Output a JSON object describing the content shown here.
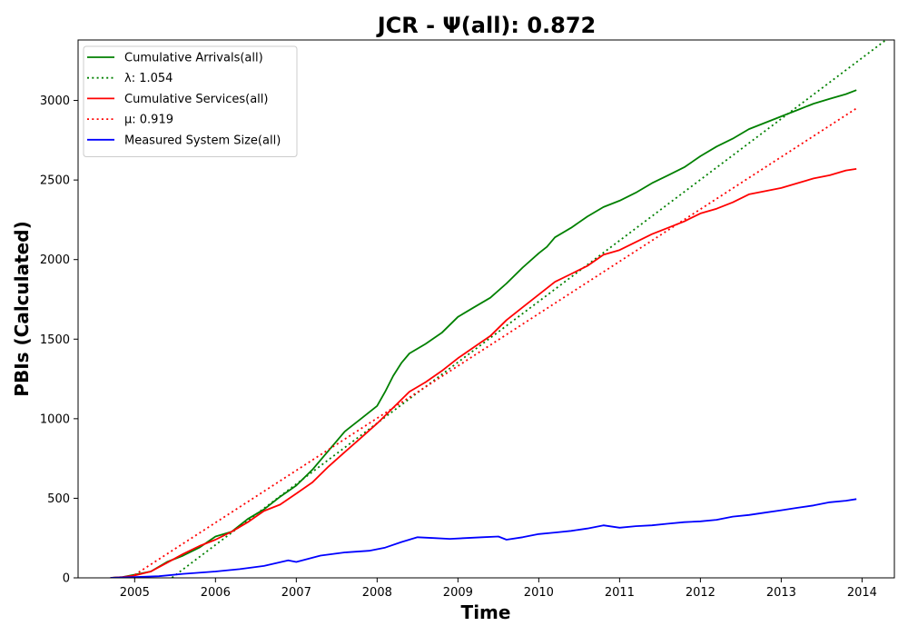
{
  "chart_data": {
    "type": "line",
    "title": "JCR -  Ψ(all): 0.872",
    "xlabel": "Time",
    "ylabel": "PBIs (Calculated)",
    "xlim": [
      2004.3,
      2014.4
    ],
    "ylim": [
      0,
      3380
    ],
    "x_ticks": [
      2005,
      2006,
      2007,
      2008,
      2009,
      2010,
      2011,
      2012,
      2013,
      2014
    ],
    "x_tick_labels": [
      "2005",
      "2006",
      "2007",
      "2008",
      "2009",
      "2010",
      "2011",
      "2012",
      "2013",
      "2014"
    ],
    "y_ticks": [
      0,
      500,
      1000,
      1500,
      2000,
      2500,
      3000
    ],
    "y_tick_labels": [
      "0",
      "500",
      "1000",
      "1500",
      "2000",
      "2500",
      "3000"
    ],
    "grid": false,
    "legend_position": "top-left",
    "series": [
      {
        "name": "Cumulative Arrivals(all)",
        "color": "#008000",
        "style": "solid",
        "x": [
          2004.7,
          2004.85,
          2005.0,
          2005.2,
          2005.4,
          2005.6,
          2005.8,
          2006.0,
          2006.2,
          2006.4,
          2006.6,
          2006.8,
          2007.0,
          2007.2,
          2007.4,
          2007.6,
          2007.8,
          2008.0,
          2008.1,
          2008.2,
          2008.3,
          2008.4,
          2008.6,
          2008.8,
          2009.0,
          2009.2,
          2009.4,
          2009.6,
          2009.8,
          2010.0,
          2010.1,
          2010.2,
          2010.4,
          2010.6,
          2010.8,
          2011.0,
          2011.2,
          2011.4,
          2011.6,
          2011.8,
          2012.0,
          2012.2,
          2012.4,
          2012.6,
          2012.8,
          2013.0,
          2013.2,
          2013.4,
          2013.6,
          2013.8,
          2013.93
        ],
        "y": [
          0,
          5,
          20,
          40,
          100,
          140,
          190,
          260,
          290,
          370,
          430,
          510,
          580,
          680,
          800,
          920,
          1000,
          1080,
          1170,
          1270,
          1350,
          1410,
          1470,
          1540,
          1640,
          1700,
          1760,
          1850,
          1950,
          2040,
          2080,
          2140,
          2200,
          2270,
          2330,
          2370,
          2420,
          2480,
          2530,
          2580,
          2650,
          2710,
          2760,
          2820,
          2860,
          2900,
          2940,
          2980,
          3010,
          3040,
          3065
        ]
      },
      {
        "name": "λ: 1.054",
        "color": "#008000",
        "style": "dotted",
        "x": [
          2004.7,
          2014.4
        ],
        "y": [
          -290,
          3420
        ]
      },
      {
        "name": "Cumulative Services(all)",
        "color": "#ff0000",
        "style": "solid",
        "x": [
          2004.7,
          2004.85,
          2005.0,
          2005.2,
          2005.4,
          2005.6,
          2005.8,
          2006.0,
          2006.2,
          2006.4,
          2006.6,
          2006.8,
          2007.0,
          2007.2,
          2007.4,
          2007.6,
          2007.8,
          2008.0,
          2008.2,
          2008.4,
          2008.6,
          2008.8,
          2009.0,
          2009.2,
          2009.4,
          2009.6,
          2009.8,
          2010.0,
          2010.2,
          2010.4,
          2010.6,
          2010.8,
          2011.0,
          2011.2,
          2011.4,
          2011.6,
          2011.8,
          2012.0,
          2012.2,
          2012.4,
          2012.6,
          2012.8,
          2013.0,
          2013.2,
          2013.4,
          2013.6,
          2013.8,
          2013.93
        ],
        "y": [
          0,
          5,
          15,
          40,
          95,
          150,
          200,
          240,
          290,
          350,
          420,
          460,
          530,
          600,
          700,
          790,
          880,
          970,
          1070,
          1170,
          1230,
          1300,
          1380,
          1450,
          1520,
          1620,
          1700,
          1780,
          1860,
          1910,
          1960,
          2030,
          2060,
          2110,
          2160,
          2200,
          2240,
          2290,
          2320,
          2360,
          2410,
          2430,
          2450,
          2480,
          2510,
          2530,
          2560,
          2570
        ]
      },
      {
        "name": "μ: 0.919",
        "color": "#ff0000",
        "style": "dotted",
        "x": [
          2004.7,
          2013.93
        ],
        "y": [
          -80,
          2950
        ]
      },
      {
        "name": "Measured System Size(all)",
        "color": "#0000ff",
        "style": "solid",
        "x": [
          2004.7,
          2005.0,
          2005.3,
          2005.6,
          2006.0,
          2006.3,
          2006.6,
          2006.9,
          2007.0,
          2007.3,
          2007.6,
          2007.9,
          2008.1,
          2008.3,
          2008.5,
          2008.7,
          2008.9,
          2009.1,
          2009.3,
          2009.5,
          2009.6,
          2009.8,
          2010.0,
          2010.2,
          2010.4,
          2010.6,
          2010.8,
          2011.0,
          2011.2,
          2011.4,
          2011.6,
          2011.8,
          2012.0,
          2012.2,
          2012.4,
          2012.6,
          2012.8,
          2013.0,
          2013.2,
          2013.4,
          2013.6,
          2013.8,
          2013.93
        ],
        "y": [
          0,
          5,
          10,
          25,
          40,
          55,
          75,
          110,
          100,
          140,
          160,
          170,
          190,
          225,
          255,
          250,
          245,
          250,
          255,
          260,
          240,
          255,
          275,
          285,
          295,
          310,
          330,
          315,
          325,
          330,
          340,
          350,
          355,
          365,
          385,
          395,
          410,
          425,
          440,
          455,
          475,
          485,
          495
        ]
      }
    ]
  }
}
